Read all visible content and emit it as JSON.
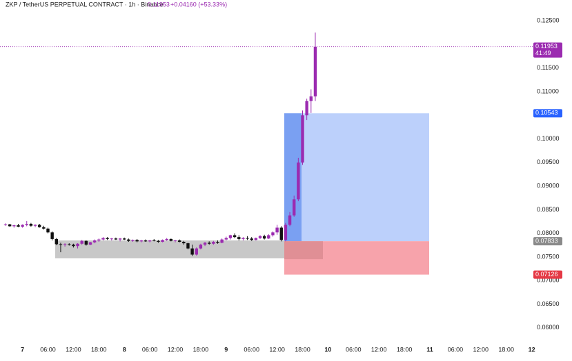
{
  "chart_data": {
    "type": "candlestick",
    "title": "ZKP / TetherUS PERPETUAL CONTRACT · 1h · Binance",
    "last_price": 0.11953,
    "change": "+0.04160 (+53.33%)",
    "up_color": "#9b2bb0",
    "down_color": "#111111",
    "ylim": [
      0.0572,
      0.1294
    ],
    "yticks": [
      {
        "value": 0.125,
        "label": "0.12500"
      },
      {
        "value": 0.115,
        "label": "0.11500"
      },
      {
        "value": 0.11,
        "label": "0.11000"
      },
      {
        "value": 0.1,
        "label": "0.10000"
      },
      {
        "value": 0.095,
        "label": "0.09500"
      },
      {
        "value": 0.09,
        "label": "0.09000"
      },
      {
        "value": 0.085,
        "label": "0.08500"
      },
      {
        "value": 0.08,
        "label": "0.08000"
      },
      {
        "value": 0.075,
        "label": "0.07500"
      },
      {
        "value": 0.07,
        "label": "0.07000"
      },
      {
        "value": 0.065,
        "label": "0.06500"
      },
      {
        "value": 0.06,
        "label": "0.06000"
      }
    ],
    "x_labels": [
      "7",
      "06:00",
      "12:00",
      "18:00",
      "8",
      "06:00",
      "12:00",
      "18:00",
      "9",
      "06:00",
      "12:00",
      "18:00",
      "10",
      "06:00",
      "12:00",
      "18:00",
      "11",
      "06:00",
      "12:00",
      "18:00",
      "12"
    ],
    "price_labels": [
      {
        "value": 0.11953,
        "color": "#9b2bb0",
        "extra": "41:49"
      },
      {
        "value": 0.10543,
        "color": "#2962ff"
      },
      {
        "value": 0.07833,
        "color": "#8a8a8a"
      },
      {
        "value": 0.07126,
        "color": "#e53945"
      }
    ],
    "range_box": {
      "top": 0.0785,
      "bottom": 0.0747
    },
    "position": {
      "target": 0.10543,
      "entry": 0.07833,
      "stop": 0.07126
    },
    "candles": [
      [
        0.0818,
        0.0821,
        0.0816,
        0.0819
      ],
      [
        0.0819,
        0.082,
        0.0814,
        0.0815
      ],
      [
        0.0815,
        0.0818,
        0.0812,
        0.0817
      ],
      [
        0.0817,
        0.082,
        0.0813,
        0.0814
      ],
      [
        0.0814,
        0.0819,
        0.0812,
        0.0818
      ],
      [
        0.0818,
        0.0826,
        0.0815,
        0.082
      ],
      [
        0.082,
        0.0822,
        0.0814,
        0.0816
      ],
      [
        0.0816,
        0.0819,
        0.0813,
        0.0818
      ],
      [
        0.0818,
        0.082,
        0.0812,
        0.0813
      ],
      [
        0.0813,
        0.0816,
        0.0808,
        0.081
      ],
      [
        0.081,
        0.0812,
        0.08,
        0.0802
      ],
      [
        0.0802,
        0.0804,
        0.0785,
        0.0788
      ],
      [
        0.0788,
        0.079,
        0.0775,
        0.0777
      ],
      [
        0.0777,
        0.078,
        0.076,
        0.0776
      ],
      [
        0.0776,
        0.0779,
        0.0772,
        0.0777
      ],
      [
        0.0777,
        0.0779,
        0.0774,
        0.0776
      ],
      [
        0.0776,
        0.0778,
        0.077,
        0.0773
      ],
      [
        0.0773,
        0.0779,
        0.0768,
        0.0778
      ],
      [
        0.0778,
        0.0786,
        0.0776,
        0.0784
      ],
      [
        0.0784,
        0.0785,
        0.0774,
        0.0776
      ],
      [
        0.0776,
        0.0782,
        0.0775,
        0.0781
      ],
      [
        0.0781,
        0.0787,
        0.0779,
        0.0785
      ],
      [
        0.0785,
        0.0789,
        0.0782,
        0.0787
      ],
      [
        0.0787,
        0.0792,
        0.0785,
        0.079
      ],
      [
        0.079,
        0.0792,
        0.0786,
        0.0788
      ],
      [
        0.0788,
        0.079,
        0.0785,
        0.0789
      ],
      [
        0.0789,
        0.0791,
        0.0786,
        0.0787
      ],
      [
        0.0787,
        0.079,
        0.0783,
        0.0789
      ],
      [
        0.0789,
        0.0791,
        0.0786,
        0.0787
      ],
      [
        0.0787,
        0.0789,
        0.0782,
        0.0784
      ],
      [
        0.0784,
        0.0787,
        0.0782,
        0.0786
      ],
      [
        0.0786,
        0.0788,
        0.0781,
        0.0783
      ],
      [
        0.0783,
        0.0786,
        0.0781,
        0.0785
      ],
      [
        0.0785,
        0.0787,
        0.0782,
        0.0783
      ],
      [
        0.0783,
        0.0786,
        0.0781,
        0.0785
      ],
      [
        0.0785,
        0.0788,
        0.0783,
        0.0784
      ],
      [
        0.0784,
        0.0786,
        0.078,
        0.0782
      ],
      [
        0.0782,
        0.0787,
        0.0781,
        0.0786
      ],
      [
        0.0786,
        0.079,
        0.0784,
        0.0788
      ],
      [
        0.0788,
        0.0789,
        0.0783,
        0.0784
      ],
      [
        0.0784,
        0.0786,
        0.0781,
        0.0785
      ],
      [
        0.0785,
        0.0787,
        0.0781,
        0.0782
      ],
      [
        0.0782,
        0.0784,
        0.0776,
        0.0779
      ],
      [
        0.0779,
        0.078,
        0.0766,
        0.0768
      ],
      [
        0.0768,
        0.0776,
        0.0752,
        0.0755
      ],
      [
        0.0755,
        0.077,
        0.0753,
        0.0768
      ],
      [
        0.0768,
        0.0778,
        0.0766,
        0.0776
      ],
      [
        0.0776,
        0.0782,
        0.0773,
        0.078
      ],
      [
        0.078,
        0.0783,
        0.0776,
        0.0778
      ],
      [
        0.0778,
        0.0784,
        0.0776,
        0.0782
      ],
      [
        0.0782,
        0.0785,
        0.0778,
        0.078
      ],
      [
        0.078,
        0.0789,
        0.0779,
        0.0787
      ],
      [
        0.0787,
        0.0793,
        0.0785,
        0.079
      ],
      [
        0.079,
        0.0797,
        0.0787,
        0.0796
      ],
      [
        0.0796,
        0.08,
        0.079,
        0.0792
      ],
      [
        0.0792,
        0.0796,
        0.0785,
        0.0788
      ],
      [
        0.0788,
        0.0792,
        0.0785,
        0.079
      ],
      [
        0.079,
        0.0794,
        0.0786,
        0.0789
      ],
      [
        0.0789,
        0.0792,
        0.0784,
        0.0786
      ],
      [
        0.0786,
        0.0791,
        0.0785,
        0.079
      ],
      [
        0.079,
        0.0796,
        0.0788,
        0.0794
      ],
      [
        0.0794,
        0.0797,
        0.0787,
        0.0789
      ],
      [
        0.0789,
        0.0798,
        0.0788,
        0.0796
      ],
      [
        0.0796,
        0.0804,
        0.0793,
        0.0802
      ],
      [
        0.0802,
        0.0818,
        0.0797,
        0.0812
      ],
      [
        0.0812,
        0.0815,
        0.0783,
        0.0786
      ],
      [
        0.0786,
        0.0822,
        0.0783,
        0.0818
      ],
      [
        0.0818,
        0.0845,
        0.0815,
        0.0838
      ],
      [
        0.0838,
        0.088,
        0.0835,
        0.0872
      ],
      [
        0.0872,
        0.096,
        0.0868,
        0.095
      ],
      [
        0.095,
        0.106,
        0.0945,
        0.105
      ],
      [
        0.105,
        0.1085,
        0.104,
        0.108
      ],
      [
        0.108,
        0.1105,
        0.1055,
        0.109
      ],
      [
        0.109,
        0.1225,
        0.108,
        0.1195
      ]
    ]
  }
}
